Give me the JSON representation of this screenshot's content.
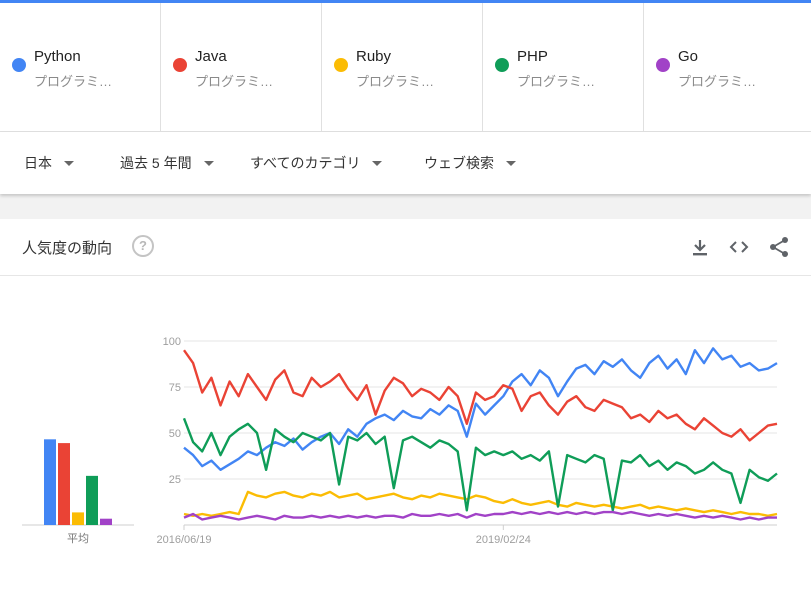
{
  "terms": [
    {
      "name": "Python",
      "category": "プログラミ…",
      "color": "#4285f4"
    },
    {
      "name": "Java",
      "category": "プログラミ…",
      "color": "#ea4335"
    },
    {
      "name": "Ruby",
      "category": "プログラミ…",
      "color": "#fbbc04"
    },
    {
      "name": "PHP",
      "category": "プログラミ…",
      "color": "#0f9d58"
    },
    {
      "name": "Go",
      "category": "プログラミ…",
      "color": "#a142c7"
    }
  ],
  "filters": {
    "region": "日本",
    "period": "過去 5 年間",
    "category": "すべてのカテゴリ",
    "search_type": "ウェブ検索"
  },
  "card": {
    "title": "人気度の動向",
    "help_glyph": "?",
    "avg_label": "平均"
  },
  "chart_data": {
    "type": "line",
    "title": "",
    "xlabel": "",
    "ylabel": "",
    "ylim": [
      0,
      100
    ],
    "y_ticks": [
      100,
      75,
      50,
      25
    ],
    "x_tick_labels": [
      "2016/06/19",
      "2019/02/24"
    ],
    "x_start": "2016/06/19",
    "x_end": "2021/06/13",
    "grid": true,
    "series": [
      {
        "name": "Python",
        "color": "#4285f4",
        "average": 68,
        "x": [
          "2016/06/19",
          "2016/07/17",
          "2016/08/14",
          "2016/09/11",
          "2016/10/09",
          "2016/11/06",
          "2016/12/04",
          "2017/01/01",
          "2017/01/29",
          "2017/02/26",
          "2017/03/26",
          "2017/04/23",
          "2017/05/21",
          "2017/06/18",
          "2017/07/16",
          "2017/08/13",
          "2017/09/10",
          "2017/10/08",
          "2017/11/05",
          "2017/12/03",
          "2017/12/31",
          "2018/01/28",
          "2018/02/25",
          "2018/03/25",
          "2018/04/22",
          "2018/05/20",
          "2018/06/17",
          "2018/07/15",
          "2018/08/12",
          "2018/09/09",
          "2018/10/07",
          "2018/11/04",
          "2018/12/02",
          "2018/12/30",
          "2019/01/27",
          "2019/02/24",
          "2019/03/24",
          "2019/04/21",
          "2019/05/19",
          "2019/06/16",
          "2019/07/14",
          "2019/08/11",
          "2019/09/08",
          "2019/10/06",
          "2019/11/03",
          "2019/12/01",
          "2019/12/29",
          "2020/01/26",
          "2020/02/23",
          "2020/03/22",
          "2020/04/19",
          "2020/05/17",
          "2020/06/14",
          "2020/07/12",
          "2020/08/09",
          "2020/09/06",
          "2020/10/04",
          "2020/11/01",
          "2020/11/29",
          "2020/12/27",
          "2021/01/24",
          "2021/02/21",
          "2021/03/21",
          "2021/04/18",
          "2021/05/16",
          "2021/06/13"
        ],
        "values": [
          42,
          38,
          32,
          35,
          30,
          33,
          36,
          40,
          38,
          42,
          45,
          43,
          47,
          41,
          45,
          48,
          50,
          44,
          52,
          48,
          55,
          58,
          60,
          57,
          62,
          59,
          58,
          63,
          60,
          65,
          62,
          48,
          66,
          60,
          65,
          70,
          78,
          82,
          76,
          84,
          80,
          70,
          78,
          85,
          87,
          82,
          89,
          86,
          90,
          84,
          80,
          88,
          92,
          85,
          90,
          82,
          95,
          88,
          96,
          90,
          92,
          86,
          88,
          84,
          85,
          88
        ]
      },
      {
        "name": "Java",
        "color": "#ea4335",
        "average": 65,
        "x": [
          "2016/06/19",
          "2016/07/17",
          "2016/08/14",
          "2016/09/11",
          "2016/10/09",
          "2016/11/06",
          "2016/12/04",
          "2017/01/01",
          "2017/01/29",
          "2017/02/26",
          "2017/03/26",
          "2017/04/23",
          "2017/05/21",
          "2017/06/18",
          "2017/07/16",
          "2017/08/13",
          "2017/09/10",
          "2017/10/08",
          "2017/11/05",
          "2017/12/03",
          "2017/12/31",
          "2018/01/28",
          "2018/02/25",
          "2018/03/25",
          "2018/04/22",
          "2018/05/20",
          "2018/06/17",
          "2018/07/15",
          "2018/08/12",
          "2018/09/09",
          "2018/10/07",
          "2018/11/04",
          "2018/12/02",
          "2018/12/30",
          "2019/01/27",
          "2019/02/24",
          "2019/03/24",
          "2019/04/21",
          "2019/05/19",
          "2019/06/16",
          "2019/07/14",
          "2019/08/11",
          "2019/09/08",
          "2019/10/06",
          "2019/11/03",
          "2019/12/01",
          "2019/12/29",
          "2020/01/26",
          "2020/02/23",
          "2020/03/22",
          "2020/04/19",
          "2020/05/17",
          "2020/06/14",
          "2020/07/12",
          "2020/08/09",
          "2020/09/06",
          "2020/10/04",
          "2020/11/01",
          "2020/11/29",
          "2020/12/27",
          "2021/01/24",
          "2021/02/21",
          "2021/03/21",
          "2021/04/18",
          "2021/05/16",
          "2021/06/13"
        ],
        "values": [
          95,
          88,
          72,
          80,
          65,
          78,
          70,
          82,
          75,
          68,
          79,
          84,
          72,
          70,
          80,
          75,
          78,
          82,
          74,
          68,
          76,
          60,
          73,
          80,
          77,
          70,
          74,
          72,
          68,
          75,
          70,
          55,
          72,
          68,
          70,
          76,
          74,
          62,
          70,
          72,
          65,
          60,
          67,
          70,
          64,
          62,
          68,
          66,
          64,
          58,
          60,
          56,
          62,
          58,
          60,
          55,
          52,
          58,
          54,
          50,
          48,
          52,
          46,
          50,
          54,
          55
        ]
      },
      {
        "name": "Ruby",
        "color": "#fbbc04",
        "average": 10,
        "x": [
          "2016/06/19",
          "2016/07/17",
          "2016/08/14",
          "2016/09/11",
          "2016/10/09",
          "2016/11/06",
          "2016/12/04",
          "2017/01/01",
          "2017/01/29",
          "2017/02/26",
          "2017/03/26",
          "2017/04/23",
          "2017/05/21",
          "2017/06/18",
          "2017/07/16",
          "2017/08/13",
          "2017/09/10",
          "2017/10/08",
          "2017/11/05",
          "2017/12/03",
          "2017/12/31",
          "2018/01/28",
          "2018/02/25",
          "2018/03/25",
          "2018/04/22",
          "2018/05/20",
          "2018/06/17",
          "2018/07/15",
          "2018/08/12",
          "2018/09/09",
          "2018/10/07",
          "2018/11/04",
          "2018/12/02",
          "2018/12/30",
          "2019/01/27",
          "2019/02/24",
          "2019/03/24",
          "2019/04/21",
          "2019/05/19",
          "2019/06/16",
          "2019/07/14",
          "2019/08/11",
          "2019/09/08",
          "2019/10/06",
          "2019/11/03",
          "2019/12/01",
          "2019/12/29",
          "2020/01/26",
          "2020/02/23",
          "2020/03/22",
          "2020/04/19",
          "2020/05/17",
          "2020/06/14",
          "2020/07/12",
          "2020/08/09",
          "2020/09/06",
          "2020/10/04",
          "2020/11/01",
          "2020/11/29",
          "2020/12/27",
          "2021/01/24",
          "2021/02/21",
          "2021/03/21",
          "2021/04/18",
          "2021/05/16",
          "2021/06/13"
        ],
        "values": [
          6,
          5,
          6,
          5,
          6,
          7,
          6,
          18,
          16,
          15,
          17,
          18,
          16,
          15,
          17,
          16,
          18,
          15,
          16,
          17,
          14,
          15,
          16,
          17,
          15,
          14,
          16,
          15,
          17,
          16,
          15,
          14,
          16,
          15,
          13,
          12,
          14,
          12,
          11,
          12,
          13,
          11,
          10,
          12,
          11,
          10,
          11,
          10,
          9,
          10,
          11,
          9,
          10,
          9,
          8,
          9,
          8,
          7,
          8,
          7,
          6,
          7,
          6,
          6,
          5,
          6
        ]
      },
      {
        "name": "PHP",
        "color": "#0f9d58",
        "average": 39,
        "x": [
          "2016/06/19",
          "2016/07/17",
          "2016/08/14",
          "2016/09/11",
          "2016/10/09",
          "2016/11/06",
          "2016/12/04",
          "2017/01/01",
          "2017/01/29",
          "2017/02/26",
          "2017/03/26",
          "2017/04/23",
          "2017/05/21",
          "2017/06/18",
          "2017/07/16",
          "2017/08/13",
          "2017/09/10",
          "2017/10/08",
          "2017/11/05",
          "2017/12/03",
          "2017/12/31",
          "2018/01/28",
          "2018/02/25",
          "2018/03/25",
          "2018/04/22",
          "2018/05/20",
          "2018/06/17",
          "2018/07/15",
          "2018/08/12",
          "2018/09/09",
          "2018/10/07",
          "2018/11/04",
          "2018/12/02",
          "2018/12/30",
          "2019/01/27",
          "2019/02/24",
          "2019/03/24",
          "2019/04/21",
          "2019/05/19",
          "2019/06/16",
          "2019/07/14",
          "2019/08/11",
          "2019/09/08",
          "2019/10/06",
          "2019/11/03",
          "2019/12/01",
          "2019/12/29",
          "2020/01/26",
          "2020/02/23",
          "2020/03/22",
          "2020/04/19",
          "2020/05/17",
          "2020/06/14",
          "2020/07/12",
          "2020/08/09",
          "2020/09/06",
          "2020/10/04",
          "2020/11/01",
          "2020/11/29",
          "2020/12/27",
          "2021/01/24",
          "2021/02/21",
          "2021/03/21",
          "2021/04/18",
          "2021/05/16",
          "2021/06/13"
        ],
        "values": [
          58,
          45,
          40,
          50,
          38,
          48,
          52,
          55,
          50,
          30,
          52,
          48,
          45,
          50,
          48,
          46,
          50,
          22,
          48,
          46,
          50,
          44,
          48,
          20,
          46,
          48,
          45,
          42,
          46,
          44,
          40,
          8,
          42,
          38,
          40,
          38,
          40,
          36,
          38,
          35,
          40,
          10,
          38,
          36,
          34,
          38,
          36,
          8,
          35,
          34,
          38,
          32,
          35,
          30,
          34,
          32,
          28,
          30,
          34,
          30,
          28,
          12,
          30,
          26,
          24,
          28
        ]
      },
      {
        "name": "Go",
        "color": "#a142c7",
        "average": 5,
        "x": [
          "2016/06/19",
          "2016/07/17",
          "2016/08/14",
          "2016/09/11",
          "2016/10/09",
          "2016/11/06",
          "2016/12/04",
          "2017/01/01",
          "2017/01/29",
          "2017/02/26",
          "2017/03/26",
          "2017/04/23",
          "2017/05/21",
          "2017/06/18",
          "2017/07/16",
          "2017/08/13",
          "2017/09/10",
          "2017/10/08",
          "2017/11/05",
          "2017/12/03",
          "2017/12/31",
          "2018/01/28",
          "2018/02/25",
          "2018/03/25",
          "2018/04/22",
          "2018/05/20",
          "2018/06/17",
          "2018/07/15",
          "2018/08/12",
          "2018/09/09",
          "2018/10/07",
          "2018/11/04",
          "2018/12/02",
          "2018/12/30",
          "2019/01/27",
          "2019/02/24",
          "2019/03/24",
          "2019/04/21",
          "2019/05/19",
          "2019/06/16",
          "2019/07/14",
          "2019/08/11",
          "2019/09/08",
          "2019/10/06",
          "2019/11/03",
          "2019/12/01",
          "2019/12/29",
          "2020/01/26",
          "2020/02/23",
          "2020/03/22",
          "2020/04/19",
          "2020/05/17",
          "2020/06/14",
          "2020/07/12",
          "2020/08/09",
          "2020/09/06",
          "2020/10/04",
          "2020/11/01",
          "2020/11/29",
          "2020/12/27",
          "2021/01/24",
          "2021/02/21",
          "2021/03/21",
          "2021/04/18",
          "2021/05/16",
          "2021/06/13"
        ],
        "values": [
          4,
          6,
          3,
          4,
          5,
          4,
          3,
          4,
          5,
          4,
          3,
          5,
          4,
          4,
          5,
          4,
          5,
          4,
          5,
          4,
          5,
          4,
          5,
          5,
          4,
          6,
          5,
          5,
          6,
          5,
          6,
          4,
          6,
          5,
          6,
          6,
          7,
          6,
          7,
          6,
          7,
          6,
          7,
          6,
          7,
          6,
          7,
          7,
          6,
          7,
          6,
          5,
          6,
          5,
          6,
          5,
          4,
          5,
          4,
          5,
          4,
          3,
          4,
          3,
          4,
          4
        ]
      }
    ]
  }
}
